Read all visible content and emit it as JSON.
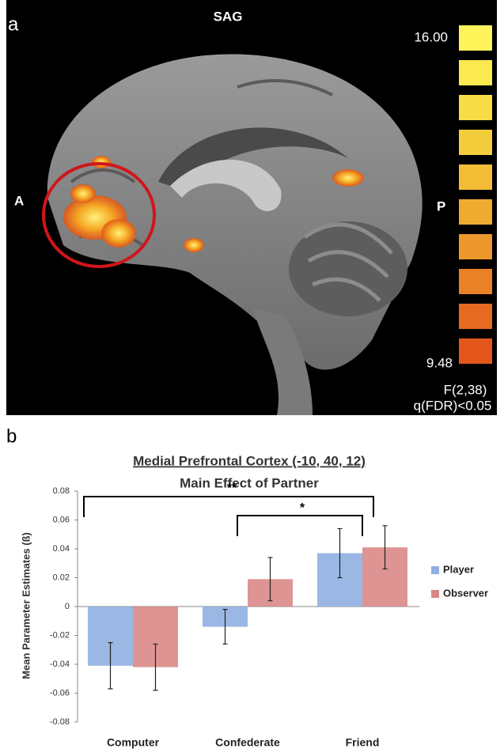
{
  "panel_a": {
    "label": "a",
    "view": "SAG",
    "anterior": "A",
    "posterior": "P",
    "scale_max": "16.00",
    "scale_min": "9.48",
    "stat": "F(2,38)",
    "threshold": "q(FDR)<0.05"
  },
  "chart_data": {
    "type": "bar",
    "panel_label": "b",
    "title": "Medial Prefrontal Cortex (-10, 40, 12)",
    "subtitle": "Main Effect of Partner",
    "y_label": "Mean Parameter Estimates (ß)",
    "categories": [
      "Computer",
      "Confederate",
      "Friend"
    ],
    "series": [
      {
        "name": "Player",
        "color": "#8fb0e0",
        "values": [
          -0.041,
          -0.014,
          0.037
        ],
        "errors": [
          0.016,
          0.012,
          0.017
        ]
      },
      {
        "name": "Observer",
        "color": "#d98886",
        "values": [
          -0.042,
          0.019,
          0.041
        ],
        "errors": [
          0.016,
          0.015,
          0.015
        ]
      }
    ],
    "ylim": [
      -0.08,
      0.08
    ],
    "yticks": [
      -0.08,
      -0.06,
      -0.04,
      -0.02,
      0,
      0.02,
      0.04,
      0.06,
      0.08
    ],
    "annotations": [
      "**",
      "*"
    ],
    "legend": "right"
  }
}
